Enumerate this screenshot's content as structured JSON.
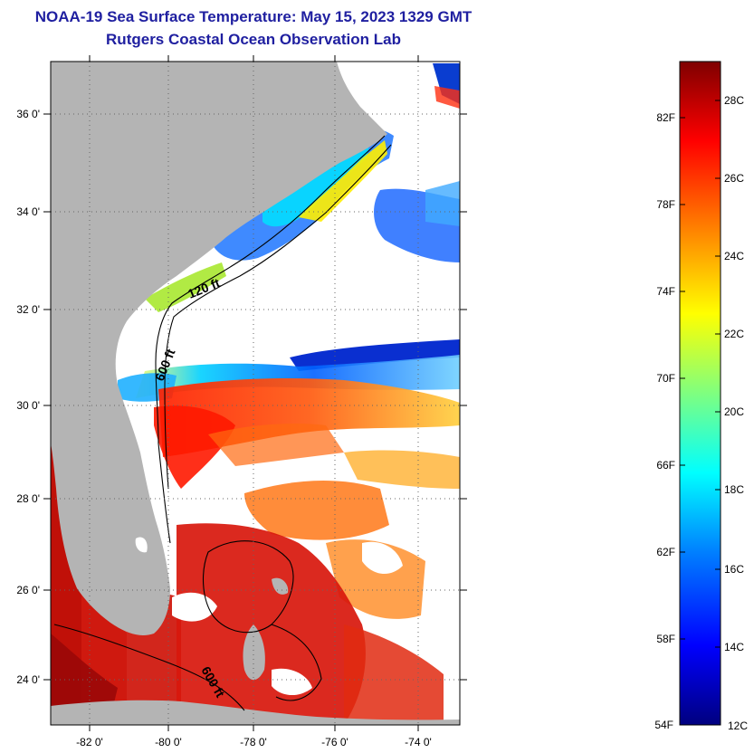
{
  "header": {
    "title": "NOAA-19 Sea Surface Temperature:  May 15, 2023 1329 GMT",
    "subtitle": "Rutgers Coastal Ocean Observation Lab"
  },
  "map": {
    "lat_labels": [
      "36 0'",
      "34 0'",
      "32 0'",
      "30 0'",
      "28 0'",
      "26 0'",
      "24 0'"
    ],
    "lon_labels": [
      "-82 0'",
      "-80 0'",
      "-78 0'",
      "-76 0'",
      "-74 0'"
    ],
    "lat_range": [
      23,
      37
    ],
    "lon_range": [
      -83,
      -73
    ],
    "contour_labels": [
      "120 ft",
      "600 ft",
      "600 ft"
    ],
    "land_color": "#b4b4b4"
  },
  "colorbar": {
    "fahrenheit_labels": [
      "82F",
      "78F",
      "74F",
      "70F",
      "66F",
      "62F",
      "58F",
      "54F"
    ],
    "celsius_labels": [
      "28C",
      "26C",
      "24C",
      "22C",
      "20C",
      "18C",
      "16C",
      "14C",
      "12C"
    ],
    "range_c": [
      12,
      29.5
    ],
    "colors": [
      "#00007f",
      "#0000ff",
      "#007fff",
      "#00ffff",
      "#7fff7f",
      "#ffff00",
      "#ff7f00",
      "#ff0000",
      "#7f0000"
    ]
  }
}
